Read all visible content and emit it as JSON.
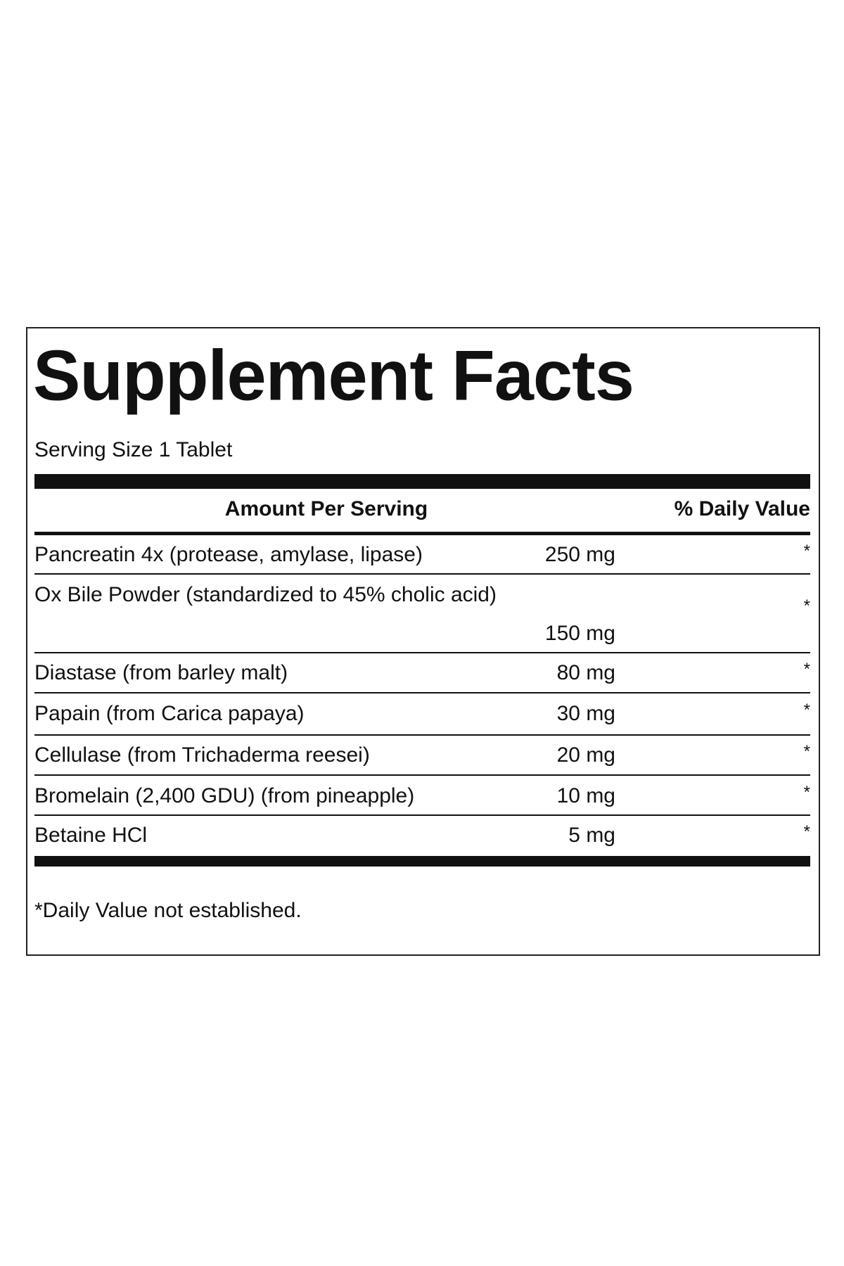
{
  "header": {
    "title": "Supplement Facts",
    "serving_size": "Serving Size 1 Tablet"
  },
  "table": {
    "columns": [
      "Amount Per Serving",
      "% Daily Value"
    ],
    "rows": [
      {
        "name": "Pancreatin 4x (protease, amylase, lipase)",
        "amount": "250 mg",
        "daily_value": "*"
      },
      {
        "name": "Ox Bile Powder (standardized to 45% cholic acid)",
        "amount": "150 mg",
        "daily_value": "*"
      },
      {
        "name": "Diastase (from barley malt)",
        "amount": "80 mg",
        "daily_value": "*"
      },
      {
        "name": "Papain (from Carica papaya)",
        "amount": "30 mg",
        "daily_value": "*"
      },
      {
        "name": "Cellulase (from Trichaderma reesei)",
        "amount": "20 mg",
        "daily_value": "*"
      },
      {
        "name": "Bromelain (2,400 GDU) (from pineapple)",
        "amount": "10 mg",
        "daily_value": "*"
      },
      {
        "name": "Betaine HCl",
        "amount": "5 mg",
        "daily_value": "*"
      }
    ]
  },
  "footnote": "*Daily Value not established."
}
